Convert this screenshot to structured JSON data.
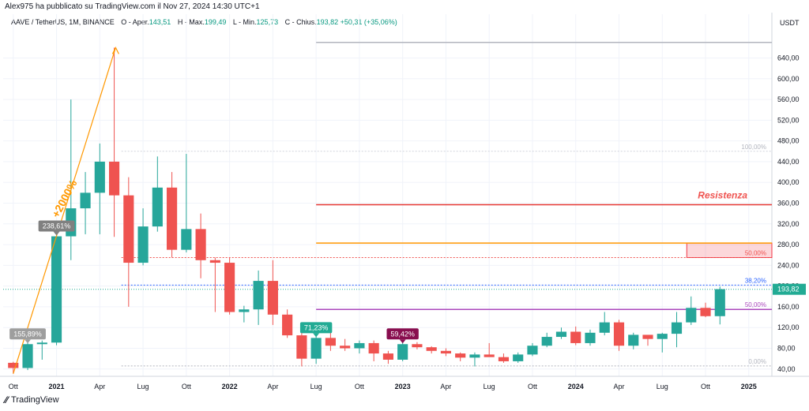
{
  "header": {
    "publisher": "Alex975 ha pubblicato su TradingView.com il Nov 27, 2024 14:30 UTC+1"
  },
  "legend": {
    "symbol": "AAVE / TetherUS, 1M, BINANCE",
    "open_label": "O - Aper.",
    "open": "143,51",
    "high_label": "H - Max.",
    "high": "199,49",
    "low_label": "L - Min.",
    "low": "125,73",
    "close_label": "C - Chius.",
    "close": "193,82",
    "change": "+50,31 (+35,06%)"
  },
  "footer": {
    "brand": "TradingView"
  },
  "chart_data": {
    "type": "candlestick",
    "currency_label": "USDT",
    "ylim": [
      26,
      694
    ],
    "y_ticks": [
      40,
      80,
      120,
      160,
      200,
      240,
      280,
      320,
      360,
      400,
      440,
      480,
      520,
      560,
      600,
      640
    ],
    "y_tick_labels": [
      "40,00",
      "80,00",
      "120,00",
      "160,00",
      "200,00",
      "240,00",
      "280,00",
      "320,00",
      "360,00",
      "400,00",
      "440,00",
      "480,00",
      "520,00",
      "560,00",
      "600,00",
      "640,00"
    ],
    "x_labels": [
      {
        "label": "Ott",
        "index": 0
      },
      {
        "label": "2021",
        "index": 3
      },
      {
        "label": "Apr",
        "index": 6
      },
      {
        "label": "Lug",
        "index": 9
      },
      {
        "label": "Ott",
        "index": 12
      },
      {
        "label": "2022",
        "index": 15
      },
      {
        "label": "Apr",
        "index": 18
      },
      {
        "label": "Lug",
        "index": 21
      },
      {
        "label": "Ott",
        "index": 24
      },
      {
        "label": "2023",
        "index": 27
      },
      {
        "label": "Apr",
        "index": 30
      },
      {
        "label": "Lug",
        "index": 33
      },
      {
        "label": "Ott",
        "index": 36
      },
      {
        "label": "2024",
        "index": 39
      },
      {
        "label": "Apr",
        "index": 42
      },
      {
        "label": "Lug",
        "index": 45
      },
      {
        "label": "Ott",
        "index": 48
      },
      {
        "label": "2025",
        "index": 51
      }
    ],
    "x_range": [
      -0.7,
      52.6
    ],
    "candles": [
      {
        "o": 52,
        "h": 54,
        "l": 31,
        "c": 42
      },
      {
        "o": 42,
        "h": 105,
        "l": 38,
        "c": 88
      },
      {
        "o": 88,
        "h": 95,
        "l": 58,
        "c": 91
      },
      {
        "o": 91,
        "h": 300,
        "l": 86,
        "c": 296
      },
      {
        "o": 296,
        "h": 560,
        "l": 250,
        "c": 350
      },
      {
        "o": 350,
        "h": 420,
        "l": 300,
        "c": 380
      },
      {
        "o": 380,
        "h": 475,
        "l": 300,
        "c": 440
      },
      {
        "o": 440,
        "h": 660,
        "l": 295,
        "c": 375
      },
      {
        "o": 375,
        "h": 410,
        "l": 160,
        "c": 245
      },
      {
        "o": 245,
        "h": 350,
        "l": 240,
        "c": 315
      },
      {
        "o": 315,
        "h": 450,
        "l": 305,
        "c": 390
      },
      {
        "o": 390,
        "h": 420,
        "l": 255,
        "c": 270
      },
      {
        "o": 270,
        "h": 455,
        "l": 265,
        "c": 310
      },
      {
        "o": 310,
        "h": 340,
        "l": 215,
        "c": 250
      },
      {
        "o": 250,
        "h": 255,
        "l": 150,
        "c": 245
      },
      {
        "o": 245,
        "h": 255,
        "l": 145,
        "c": 150
      },
      {
        "o": 150,
        "h": 162,
        "l": 130,
        "c": 155
      },
      {
        "o": 155,
        "h": 230,
        "l": 125,
        "c": 210
      },
      {
        "o": 210,
        "h": 250,
        "l": 125,
        "c": 145
      },
      {
        "o": 145,
        "h": 155,
        "l": 100,
        "c": 105
      },
      {
        "o": 105,
        "h": 110,
        "l": 45,
        "c": 60
      },
      {
        "o": 60,
        "h": 110,
        "l": 50,
        "c": 100
      },
      {
        "o": 100,
        "h": 110,
        "l": 75,
        "c": 85
      },
      {
        "o": 85,
        "h": 98,
        "l": 75,
        "c": 80
      },
      {
        "o": 80,
        "h": 95,
        "l": 70,
        "c": 90
      },
      {
        "o": 90,
        "h": 95,
        "l": 55,
        "c": 70
      },
      {
        "o": 70,
        "h": 75,
        "l": 50,
        "c": 58
      },
      {
        "o": 58,
        "h": 92,
        "l": 55,
        "c": 88
      },
      {
        "o": 88,
        "h": 92,
        "l": 78,
        "c": 82
      },
      {
        "o": 82,
        "h": 84,
        "l": 70,
        "c": 75
      },
      {
        "o": 75,
        "h": 80,
        "l": 65,
        "c": 70
      },
      {
        "o": 70,
        "h": 72,
        "l": 55,
        "c": 62
      },
      {
        "o": 62,
        "h": 72,
        "l": 45,
        "c": 68
      },
      {
        "o": 68,
        "h": 90,
        "l": 65,
        "c": 63
      },
      {
        "o": 63,
        "h": 70,
        "l": 52,
        "c": 55
      },
      {
        "o": 55,
        "h": 72,
        "l": 52,
        "c": 68
      },
      {
        "o": 68,
        "h": 90,
        "l": 65,
        "c": 85
      },
      {
        "o": 85,
        "h": 110,
        "l": 82,
        "c": 102
      },
      {
        "o": 102,
        "h": 120,
        "l": 98,
        "c": 112
      },
      {
        "o": 112,
        "h": 122,
        "l": 86,
        "c": 90
      },
      {
        "o": 90,
        "h": 116,
        "l": 85,
        "c": 110
      },
      {
        "o": 110,
        "h": 150,
        "l": 105,
        "c": 130
      },
      {
        "o": 130,
        "h": 135,
        "l": 75,
        "c": 85
      },
      {
        "o": 85,
        "h": 110,
        "l": 78,
        "c": 106
      },
      {
        "o": 106,
        "h": 104,
        "l": 85,
        "c": 98
      },
      {
        "o": 98,
        "h": 110,
        "l": 72,
        "c": 108
      },
      {
        "o": 108,
        "h": 150,
        "l": 82,
        "c": 130
      },
      {
        "o": 130,
        "h": 180,
        "l": 125,
        "c": 158
      },
      {
        "o": 158,
        "h": 168,
        "l": 140,
        "c": 142
      },
      {
        "o": 142,
        "h": 199,
        "l": 126,
        "c": 194
      }
    ],
    "levels": [
      {
        "y": 670,
        "from": 21,
        "to": 52.6,
        "color": "#b2b5be",
        "style": "solid"
      },
      {
        "y": 460,
        "from": 7.5,
        "to": 52.6,
        "color": "#d1d4dc",
        "style": "dotted",
        "label": "100,00%",
        "label_color": "#b2b5be"
      },
      {
        "y": 357,
        "from": 21,
        "to": 52.6,
        "color": "#e53935",
        "style": "solid",
        "label": "Resistenza",
        "label_color": "#ef5350"
      },
      {
        "y": 283,
        "from": 21,
        "to": 52.6,
        "color": "#ff9800",
        "style": "solid"
      },
      {
        "y": 255,
        "from": 7.5,
        "to": 52.6,
        "color": "#ef5350",
        "style": "dotted",
        "label": "50,00%",
        "label_color": "#ef5350"
      },
      {
        "y": 202,
        "from": 7.5,
        "to": 52.6,
        "color": "#2962ff",
        "style": "dotted",
        "label": "38,20%",
        "label_color": "#2962ff"
      },
      {
        "y": 155,
        "from": 21,
        "to": 52.6,
        "color": "#ab47bc",
        "style": "solid",
        "label": "50,00%",
        "label_color": "#ab47bc"
      },
      {
        "y": 46,
        "from": 7.5,
        "to": 52.6,
        "color": "#b2b5be",
        "style": "dotted",
        "label": "0,00%",
        "label_color": "#b2b5be"
      }
    ],
    "zone": {
      "y0": 255,
      "y1": 283,
      "from": 46.7,
      "to": 52.6,
      "color": "#f23645"
    },
    "arrow": {
      "x0": 0,
      "y0": 31,
      "x1": 7.1,
      "y1": 660,
      "label": "+2000%",
      "color": "#ff9800"
    },
    "callouts": [
      {
        "text": "155,89%",
        "index": 1,
        "y": 88,
        "color": "#9e9e9e",
        "dir": "down"
      },
      {
        "text": "238,61%",
        "index": 3,
        "y": 296,
        "color": "#808080",
        "dir": "down"
      },
      {
        "text": "71,23%",
        "index": 21,
        "y": 100,
        "color": "#22ab94",
        "dir": "down"
      },
      {
        "text": "59,42%",
        "index": 27,
        "y": 88,
        "color": "#880e4f",
        "dir": "down"
      }
    ],
    "last_price": {
      "value": 193.82,
      "label": "193,82",
      "color": "#22ab94"
    }
  }
}
